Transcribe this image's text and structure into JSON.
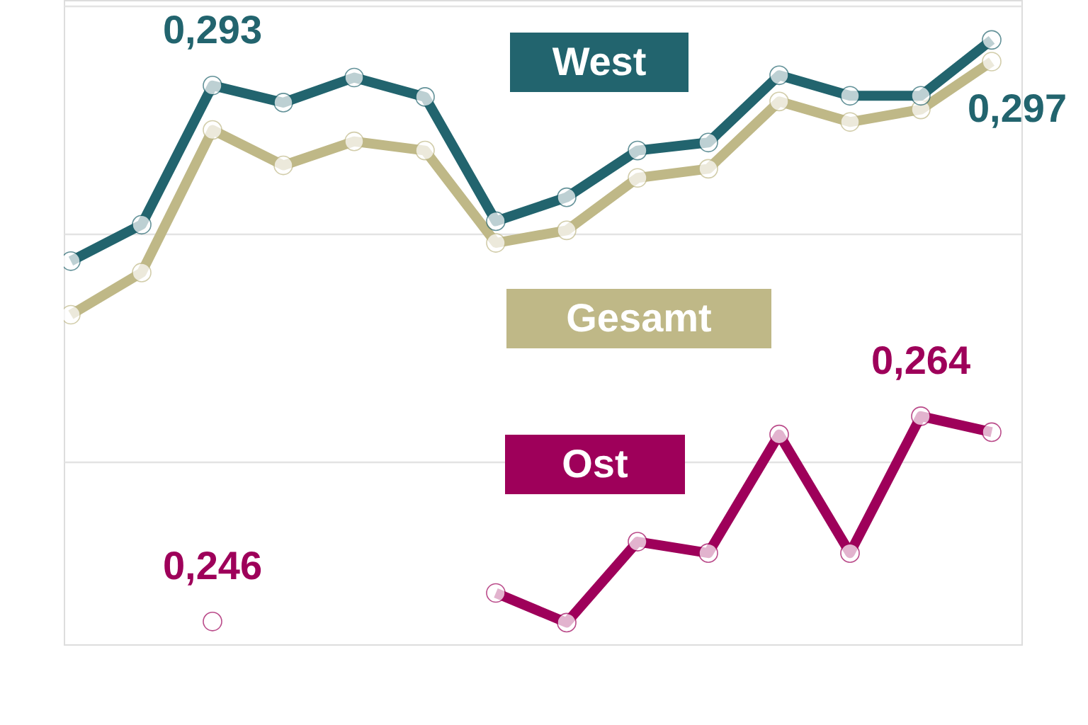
{
  "chart_data": {
    "type": "line",
    "categories": [
      null,
      null,
      null,
      null,
      null,
      null,
      null,
      null,
      null,
      null,
      null,
      null,
      null,
      null
    ],
    "ylim": [
      0.244,
      0.3005
    ],
    "yticks": [
      {
        "value": 0.26,
        "label": null
      },
      {
        "value": 0.28,
        "label": null
      },
      {
        "value": 0.3,
        "label": null
      }
    ],
    "grid": "y",
    "tick_labels": false,
    "marker": "circle",
    "line_style": "solid",
    "series": [
      {
        "name": "West",
        "color": "#22646e",
        "values": [
          0.2776,
          0.2808,
          0.293,
          0.2915,
          0.2937,
          0.292,
          0.2811,
          0.2832,
          0.2873,
          0.288,
          0.2939,
          0.2921,
          0.2921,
          0.297
        ],
        "value_labels": [
          null,
          null,
          "0,293",
          null,
          null,
          null,
          null,
          null,
          null,
          null,
          null,
          null,
          null,
          "0,297"
        ]
      },
      {
        "name": "Gesamt",
        "color": "#bfb887",
        "values": [
          0.2729,
          0.2766,
          0.2891,
          0.286,
          0.2881,
          0.2873,
          0.2792,
          0.2803,
          0.2849,
          0.2857,
          0.2916,
          0.2898,
          0.2909,
          0.2951
        ]
      },
      {
        "name": "Ost",
        "color": "#9e005a",
        "values": [
          null,
          null,
          0.246,
          null,
          null,
          null,
          0.2485,
          0.2459,
          0.253,
          0.252,
          0.2624,
          0.252,
          0.264,
          0.2626
        ],
        "value_labels": [
          null,
          null,
          "0,246",
          null,
          null,
          null,
          null,
          null,
          null,
          null,
          null,
          null,
          "0,264",
          null
        ]
      }
    ]
  }
}
